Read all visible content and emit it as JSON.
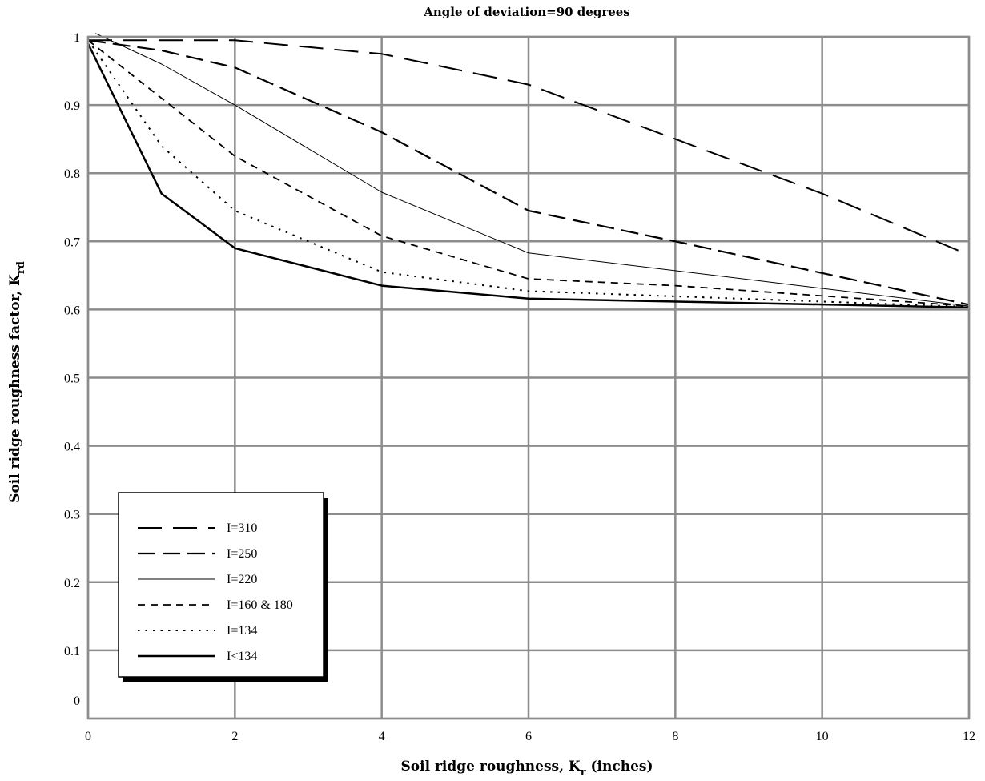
{
  "chart_data": {
    "type": "line",
    "title": "Angle of deviation=90 degrees",
    "xlabel_main": "Soil ridge roughness, K",
    "xlabel_sub": "r",
    "xlabel_tail": " (inches)",
    "ylabel_main": "Soil ridge roughness factor, K",
    "ylabel_sub": "rd",
    "xlim": [
      0,
      12
    ],
    "ylim": [
      0,
      1
    ],
    "x_ticks": [
      0,
      2,
      4,
      6,
      8,
      10,
      12
    ],
    "y_ticks": [
      0,
      0.1,
      0.2,
      0.3,
      0.4,
      0.5,
      0.6,
      0.7,
      0.8,
      0.9,
      1
    ],
    "x_tick_labels": [
      "0",
      "2",
      "4",
      "6",
      "8",
      "10",
      "12"
    ],
    "y_tick_labels": [
      "0",
      "0.1",
      "0.2",
      "0.3",
      "0.4",
      "0.5",
      "0.6",
      "0.7",
      "0.8",
      "0.9",
      "1"
    ],
    "grid": true,
    "legend_position": "bottom-left",
    "series": [
      {
        "name": "I=310",
        "style": "long-dash",
        "color": "#000000",
        "x": [
          0,
          2,
          4,
          6,
          8,
          10,
          12
        ],
        "y": [
          0.995,
          0.995,
          0.975,
          0.93,
          0.85,
          0.77,
          0.68
        ]
      },
      {
        "name": "I=250",
        "style": "medium-dash",
        "color": "#000000",
        "x": [
          0,
          1,
          2,
          4,
          6,
          8,
          12
        ],
        "y": [
          0.995,
          0.98,
          0.955,
          0.86,
          0.745,
          0.7,
          0.607
        ]
      },
      {
        "name": "I=220",
        "style": "thin-solid",
        "color": "#000000",
        "x": [
          0.1,
          1,
          2,
          4,
          6,
          12
        ],
        "y": [
          1.005,
          0.96,
          0.9,
          0.772,
          0.683,
          0.605
        ]
      },
      {
        "name": "I=160 & 180",
        "style": "short-dash",
        "color": "#000000",
        "x": [
          0,
          1,
          2,
          4,
          6,
          8,
          12
        ],
        "y": [
          0.995,
          0.91,
          0.825,
          0.708,
          0.645,
          0.635,
          0.605
        ]
      },
      {
        "name": "I=134",
        "style": "dotted",
        "color": "#000000",
        "x": [
          0,
          1,
          2,
          4,
          6,
          12
        ],
        "y": [
          0.995,
          0.84,
          0.745,
          0.655,
          0.627,
          0.604
        ]
      },
      {
        "name": "I<134",
        "style": "thick-solid",
        "color": "#000000",
        "x": [
          0,
          1,
          2,
          4,
          6,
          12
        ],
        "y": [
          0.99,
          0.77,
          0.69,
          0.635,
          0.616,
          0.603
        ]
      }
    ]
  }
}
